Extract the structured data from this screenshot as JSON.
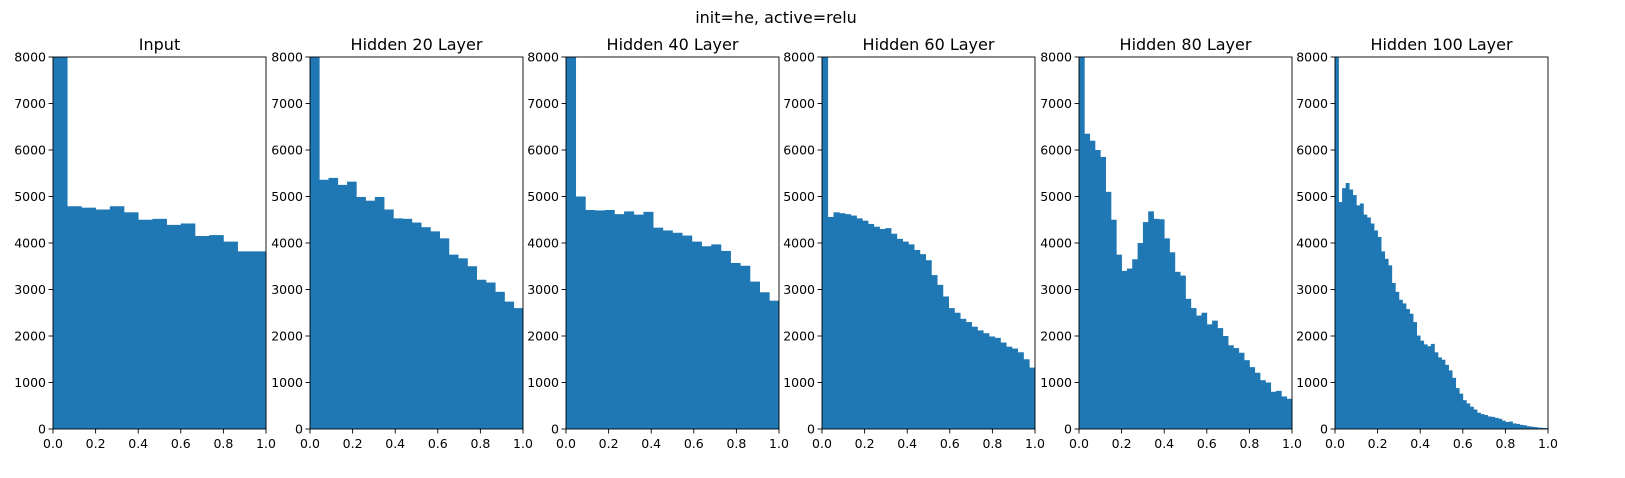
{
  "figure_title": "init=he, active=relu",
  "colors": {
    "bar": "#1f77b4",
    "axis": "#000000",
    "background": "#ffffff"
  },
  "chart_data": [
    {
      "type": "bar",
      "title": "Input",
      "xlim": [
        0,
        1
      ],
      "ylim": [
        0,
        8000
      ],
      "xticks": [
        "0.0",
        "0.2",
        "0.4",
        "0.6",
        "0.8",
        "1.0"
      ],
      "yticks": [
        "0",
        "1000",
        "2000",
        "3000",
        "4000",
        "5000",
        "6000",
        "7000",
        "8000"
      ],
      "bin_edges_start": 0,
      "bin_edges_end": 1,
      "values": [
        8000,
        4790,
        4760,
        4720,
        4790,
        4660,
        4500,
        4520,
        4390,
        4420,
        4150,
        4170,
        4030,
        3820,
        3820
      ]
    },
    {
      "type": "bar",
      "title": "Hidden 20 Layer",
      "xlim": [
        0,
        1
      ],
      "ylim": [
        0,
        8000
      ],
      "xticks": [
        "0.0",
        "0.2",
        "0.4",
        "0.6",
        "0.8",
        "1.0"
      ],
      "yticks": [
        "0",
        "1000",
        "2000",
        "3000",
        "4000",
        "5000",
        "6000",
        "7000",
        "8000"
      ],
      "bin_edges_start": 0,
      "bin_edges_end": 1,
      "values": [
        8000,
        5360,
        5400,
        5250,
        5320,
        4990,
        4910,
        4990,
        4720,
        4530,
        4520,
        4440,
        4340,
        4250,
        4100,
        3750,
        3670,
        3500,
        3210,
        3150,
        2950,
        2740,
        2600
      ]
    },
    {
      "type": "bar",
      "title": "Hidden 40 Layer",
      "xlim": [
        0,
        1
      ],
      "ylim": [
        0,
        8000
      ],
      "xticks": [
        "0.0",
        "0.2",
        "0.4",
        "0.6",
        "0.8",
        "1.0"
      ],
      "yticks": [
        "0",
        "1000",
        "2000",
        "3000",
        "4000",
        "5000",
        "6000",
        "7000",
        "8000"
      ],
      "bin_edges_start": 0,
      "bin_edges_end": 1,
      "values": [
        8000,
        5000,
        4710,
        4700,
        4710,
        4620,
        4680,
        4610,
        4670,
        4330,
        4270,
        4220,
        4160,
        4030,
        3930,
        3970,
        3830,
        3570,
        3510,
        3170,
        2940,
        2760
      ]
    },
    {
      "type": "bar",
      "title": "Hidden 60 Layer",
      "xlim": [
        0,
        1
      ],
      "ylim": [
        0,
        8000
      ],
      "xticks": [
        "0.0",
        "0.2",
        "0.4",
        "0.6",
        "0.8",
        "1.0"
      ],
      "yticks": [
        "0",
        "1000",
        "2000",
        "3000",
        "4000",
        "5000",
        "6000",
        "7000",
        "8000"
      ],
      "bin_edges_start": 0,
      "bin_edges_end": 1,
      "values": [
        8000,
        4560,
        4660,
        4640,
        4620,
        4590,
        4530,
        4480,
        4410,
        4350,
        4300,
        4320,
        4200,
        4090,
        4030,
        3970,
        3850,
        3760,
        3630,
        3310,
        3100,
        2850,
        2600,
        2500,
        2370,
        2300,
        2200,
        2120,
        2060,
        1990,
        1960,
        1860,
        1770,
        1730,
        1650,
        1500,
        1320
      ]
    },
    {
      "type": "bar",
      "title": "Hidden 80 Layer",
      "xlim": [
        0,
        1
      ],
      "ylim": [
        0,
        8000
      ],
      "xticks": [
        "0.0",
        "0.2",
        "0.4",
        "0.6",
        "0.8",
        "1.0"
      ],
      "yticks": [
        "0",
        "1000",
        "2000",
        "3000",
        "4000",
        "5000",
        "6000",
        "7000",
        "8000"
      ],
      "bin_edges_start": 0,
      "bin_edges_end": 1,
      "values": [
        8000,
        6350,
        6200,
        6000,
        5850,
        5100,
        4500,
        3750,
        3400,
        3450,
        3650,
        4000,
        4450,
        4680,
        4520,
        4510,
        4100,
        3800,
        3380,
        3300,
        2800,
        2600,
        2440,
        2500,
        2250,
        2330,
        2170,
        2000,
        1800,
        1740,
        1640,
        1480,
        1330,
        1210,
        1050,
        1000,
        800,
        820,
        700,
        650
      ]
    },
    {
      "type": "bar",
      "title": "Hidden 100 Layer",
      "xlim": [
        0,
        1
      ],
      "ylim": [
        0,
        8000
      ],
      "xticks": [
        "0.0",
        "0.2",
        "0.4",
        "0.6",
        "0.8",
        "1.0"
      ],
      "yticks": [
        "0",
        "1000",
        "2000",
        "3000",
        "4000",
        "5000",
        "6000",
        "7000",
        "8000"
      ],
      "bin_edges_start": 0,
      "bin_edges_end": 1,
      "values": [
        8000,
        4880,
        5180,
        5290,
        5150,
        5030,
        4810,
        4850,
        4610,
        4550,
        4420,
        4270,
        4130,
        3820,
        3660,
        3520,
        3140,
        2950,
        2780,
        2700,
        2580,
        2480,
        2300,
        2010,
        1900,
        1820,
        1780,
        1830,
        1650,
        1540,
        1490,
        1380,
        1260,
        1100,
        880,
        760,
        620,
        550,
        480,
        420,
        350,
        320,
        300,
        270,
        260,
        240,
        220,
        180,
        150,
        160,
        120,
        110,
        90,
        80,
        60,
        50,
        40,
        30,
        25,
        20
      ]
    }
  ]
}
